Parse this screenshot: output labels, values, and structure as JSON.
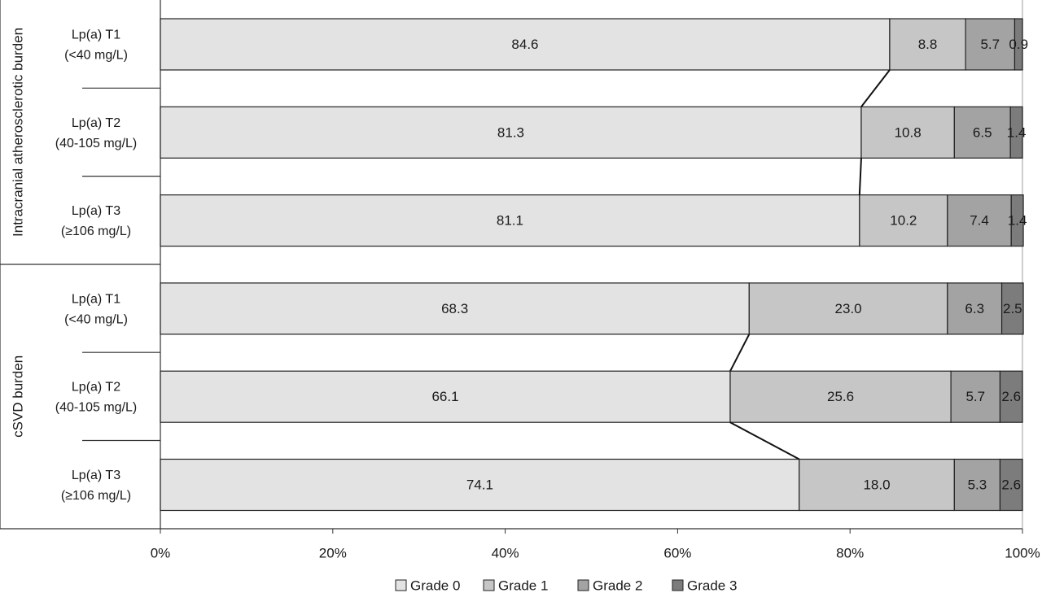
{
  "chart_data": {
    "type": "bar",
    "orientation": "horizontal",
    "stacked": true,
    "percent": true,
    "xlim": [
      0,
      100
    ],
    "x_ticks": [
      "0%",
      "20%",
      "40%",
      "60%",
      "80%",
      "100%"
    ],
    "grid": false,
    "legend_position": "bottom",
    "groups": [
      {
        "label": "Intracranial atherosclerotic burden",
        "rows": [
          {
            "label_line1": "Lp(a) T1",
            "label_line2": "(<40 mg/L)",
            "values": [
              84.6,
              8.8,
              5.7,
              0.9
            ],
            "value_labels": [
              "84.6",
              "8.8",
              "5.7",
              "0.9"
            ]
          },
          {
            "label_line1": "Lp(a) T2",
            "label_line2": "(40-105 mg/L)",
            "values": [
              81.3,
              10.8,
              6.5,
              1.4
            ],
            "value_labels": [
              "81.3",
              "10.8",
              "6.5",
              "1.4"
            ]
          },
          {
            "label_line1": "Lp(a) T3",
            "label_line2": "(≥106 mg/L)",
            "values": [
              81.1,
              10.2,
              7.4,
              1.4
            ],
            "value_labels": [
              "81.1",
              "10.2",
              "7.4",
              "1.4"
            ]
          }
        ]
      },
      {
        "label": "cSVD burden",
        "rows": [
          {
            "label_line1": "Lp(a) T1",
            "label_line2": "(<40 mg/L)",
            "values": [
              68.3,
              23.0,
              6.3,
              2.5
            ],
            "value_labels": [
              "68.3",
              "23.0",
              "6.3",
              "2.5"
            ]
          },
          {
            "label_line1": "Lp(a) T2",
            "label_line2": "(40-105 mg/L)",
            "values": [
              66.1,
              25.6,
              5.7,
              2.6
            ],
            "value_labels": [
              "66.1",
              "25.6",
              "5.7",
              "2.6"
            ]
          },
          {
            "label_line1": "Lp(a) T3",
            "label_line2": "(≥106 mg/L)",
            "values": [
              74.1,
              18.0,
              5.3,
              2.6
            ],
            "value_labels": [
              "74.1",
              "18.0",
              "5.3",
              "2.6"
            ]
          }
        ]
      }
    ],
    "series": [
      {
        "name": "Grade 0",
        "color": "#e3e3e3"
      },
      {
        "name": "Grade 1",
        "color": "#c6c6c6"
      },
      {
        "name": "Grade 2",
        "color": "#a3a3a3"
      },
      {
        "name": "Grade 3",
        "color": "#7c7c7c"
      }
    ],
    "series_lines": true
  }
}
